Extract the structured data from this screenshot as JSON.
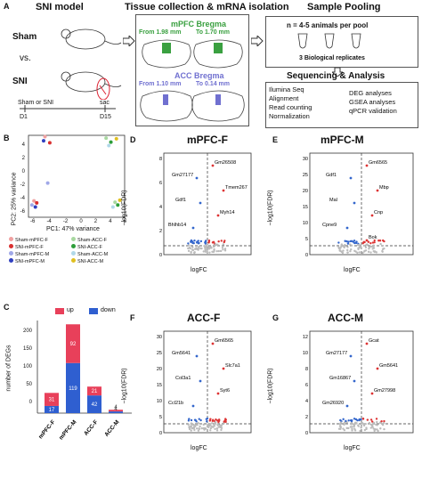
{
  "panelA": {
    "label": "A",
    "h1": "SNI model",
    "h2": "Tissue collection & mRNA isolation",
    "h3": "Sample Pooling",
    "sham": "Sham",
    "vs": "vs.",
    "sni": "SNI",
    "sham_or_sni": "Sham or SNI",
    "sac": "sac",
    "d1": "D1",
    "d15": "D15",
    "mpfc_bregma": "mPFC Bregma",
    "from_198": "From 1.98 mm",
    "to_170": "To 1.70 mm",
    "acc_bregma": "ACC Bregma",
    "from_110": "From 1.10 mm",
    "to_014": "To 0.14 mm",
    "pool_n": "n = 4-5 animals per pool",
    "bio_reps": "3 Biological replicates",
    "seq_title": "Sequencing & Analysis",
    "left_list": [
      "Ilumina Seq",
      "Alignment",
      "Read counting",
      "Normalization"
    ],
    "right_list": [
      "DEG analyses",
      "GSEA analyses",
      "qPCR validation"
    ]
  },
  "panelB": {
    "label": "B",
    "ylabel": "PC2: 25% variance",
    "xlabel": "PC1: 47% variance",
    "yticks": [
      "4",
      "2",
      "0",
      "-2",
      "-4",
      "-6"
    ],
    "xticks": [
      "-6",
      "-4",
      "-2",
      "0",
      "2",
      "4",
      "6"
    ],
    "legend": [
      {
        "name": "Sham-mPFC-F",
        "color": "#f0a0a0"
      },
      {
        "name": "Sham-ACC-F",
        "color": "#a8d8a0"
      },
      {
        "name": "SNI-mPFC-F",
        "color": "#d93030"
      },
      {
        "name": "SNI-ACC-F",
        "color": "#2e9e3a"
      },
      {
        "name": "Sham-mPFC-M",
        "color": "#a0a8e8"
      },
      {
        "name": "Sham-ACC-M",
        "color": "#b0d8e8"
      },
      {
        "name": "SNI-mPFC-M",
        "color": "#3040c0"
      },
      {
        "name": "SNI-ACC-M",
        "color": "#e0c020"
      }
    ]
  },
  "panelC": {
    "label": "C",
    "ylabel": "number of DEGs",
    "legend_up": "up",
    "legend_down": "down",
    "up_color": "#e8405a",
    "down_color": "#2f5fd0",
    "yticks": [
      "0",
      "50",
      "100",
      "150",
      "200"
    ]
  },
  "panelD": {
    "label": "D",
    "title": "mPFC-F",
    "xlabel": "logFC",
    "ylabel": "−log10(FDR)",
    "genes": [
      "Gm26508",
      "Gm27177",
      "Tmem267",
      "Gdf1",
      "Myh14",
      "Bhlhb14"
    ],
    "yticks": [
      "0",
      "2",
      "4",
      "6",
      "8"
    ],
    "xticks": [
      "-10",
      "-5",
      "0",
      "5"
    ]
  },
  "panelE": {
    "label": "E",
    "title": "mPFC-M",
    "xlabel": "logFC",
    "ylabel": "−log10(FDR)",
    "genes": [
      "Gm6565",
      "Gdf1",
      "Mbp",
      "Mal",
      "Cnp",
      "Cpne9",
      "Bok"
    ],
    "yticks": [
      "0",
      "5",
      "10",
      "15",
      "20",
      "25",
      "30"
    ],
    "xticks": [
      "-10",
      "-5",
      "0",
      "5",
      "10"
    ]
  },
  "panelF": {
    "label": "F",
    "title": "ACC-F",
    "xlabel": "logFC",
    "ylabel": "−log10(FDR)",
    "genes": [
      "Gm6565",
      "Gm5641",
      "Slc7a1",
      "Col3a1",
      "Syt6",
      "Ccl21b"
    ],
    "yticks": [
      "0",
      "5",
      "10",
      "15",
      "20",
      "25",
      "30"
    ],
    "xticks": [
      "-10",
      "-5",
      "0",
      "5",
      "10"
    ]
  },
  "panelG": {
    "label": "G",
    "title": "ACC-M",
    "xlabel": "logFC",
    "ylabel": "−log10(FDR)",
    "genes": [
      "Gcat",
      "Gm27177",
      "Gm5641",
      "Gm16867",
      "Gm27998",
      "Gm26920"
    ],
    "yticks": [
      "0",
      "2",
      "4",
      "6",
      "8",
      "10",
      "12"
    ],
    "xticks": [
      "-10",
      "-5",
      "0",
      "5"
    ]
  },
  "chart_data": [
    {
      "type": "bar",
      "panel": "C",
      "categories": [
        "mPFC-F",
        "mPFC-M",
        "ACC-F",
        "ACC-M"
      ],
      "series": [
        {
          "name": "down",
          "values": [
            17,
            119,
            42,
            4
          ]
        },
        {
          "name": "up",
          "values": [
            31,
            92,
            21,
            4
          ]
        }
      ],
      "ylabel": "number of DEGs",
      "ylim": [
        0,
        220
      ]
    },
    {
      "type": "scatter",
      "panel": "B",
      "xlabel": "PC1: 47% variance",
      "ylabel": "PC2: 25% variance",
      "xlim": [
        -7,
        7
      ],
      "ylim": [
        -7,
        5
      ],
      "series": [
        {
          "name": "Sham-mPFC-F",
          "x": [
            -6.2,
            -4.6
          ],
          "y": [
            -4.6,
            4.8
          ]
        },
        {
          "name": "SNI-mPFC-F",
          "x": [
            -5.8,
            -3.9
          ],
          "y": [
            -4.9,
            3.9
          ]
        },
        {
          "name": "Sham-mPFC-M",
          "x": [
            -6.5,
            -4.2
          ],
          "y": [
            -5.2,
            -2.0
          ]
        },
        {
          "name": "SNI-mPFC-M",
          "x": [
            -6.0,
            -4.8
          ],
          "y": [
            -5.5,
            4.2
          ]
        },
        {
          "name": "Sham-ACC-F",
          "x": [
            4.3,
            5.6
          ],
          "y": [
            4.6,
            -4.8
          ]
        },
        {
          "name": "SNI-ACC-F",
          "x": [
            5.0,
            6.0
          ],
          "y": [
            4.0,
            -5.2
          ]
        },
        {
          "name": "Sham-ACC-M",
          "x": [
            5.3,
            4.7
          ],
          "y": [
            -5.5,
            3.5
          ]
        },
        {
          "name": "SNI-ACC-M",
          "x": [
            5.8,
            6.3
          ],
          "y": [
            4.5,
            -4.5
          ]
        }
      ]
    }
  ]
}
